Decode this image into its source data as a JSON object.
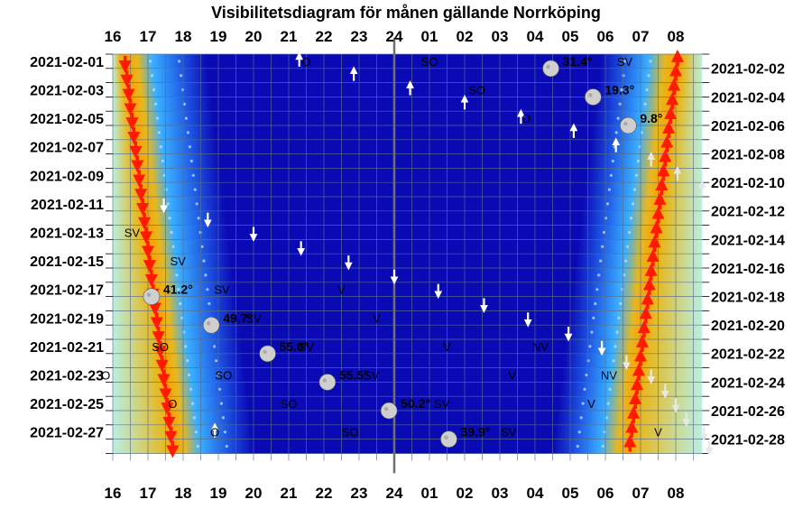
{
  "chart_data": {
    "type": "heatmap",
    "title": "Visibilitetsdiagram för månen gällande Norrköping",
    "x_ticks": [
      "16",
      "17",
      "18",
      "19",
      "20",
      "21",
      "22",
      "23",
      "24",
      "01",
      "02",
      "03",
      "04",
      "05",
      "06",
      "07",
      "08"
    ],
    "left_dates": [
      "2021-02-01",
      "2021-02-03",
      "2021-02-05",
      "2021-02-07",
      "2021-02-09",
      "2021-02-11",
      "2021-02-13",
      "2021-02-15",
      "2021-02-17",
      "2021-02-19",
      "2021-02-21",
      "2021-02-23",
      "2021-02-25",
      "2021-02-27"
    ],
    "right_dates": [
      "2021-02-02",
      "2021-02-04",
      "2021-02-06",
      "2021-02-08",
      "2021-02-10",
      "2021-02-12",
      "2021-02-14",
      "2021-02-16",
      "2021-02-18",
      "2021-02-20",
      "2021-02-22",
      "2021-02-24",
      "2021-02-26",
      "2021-02-28"
    ],
    "midnight_hour": 24,
    "sunset_hours": [
      16.35,
      16.4,
      16.45,
      16.5,
      16.55,
      16.6,
      16.65,
      16.7,
      16.75,
      16.8,
      16.85,
      16.9,
      16.95,
      17.0,
      17.05,
      17.1,
      17.15,
      17.2,
      17.25,
      17.3,
      17.35,
      17.4,
      17.45,
      17.5,
      17.55,
      17.6,
      17.65,
      17.7
    ],
    "sunrise_hours": [
      32.05,
      32.0,
      31.95,
      31.9,
      31.85,
      31.8,
      31.75,
      31.7,
      31.65,
      31.6,
      31.55,
      31.5,
      31.45,
      31.4,
      31.35,
      31.3,
      31.25,
      31.2,
      31.15,
      31.1,
      31.05,
      31.0,
      30.95,
      30.9,
      30.85,
      30.8,
      30.75,
      30.7
    ],
    "moonrises": [
      {
        "day": 1,
        "hour": 21.3
      },
      {
        "day": 2,
        "hour": 22.85
      },
      {
        "day": 3,
        "hour": 24.45
      },
      {
        "day": 4,
        "hour": 26.0
      },
      {
        "day": 5,
        "hour": 27.6
      },
      {
        "day": 6,
        "hour": 29.1
      },
      {
        "day": 7,
        "hour": 30.3
      },
      {
        "day": 8,
        "hour": 31.3
      },
      {
        "day": 9,
        "hour": 32.05
      },
      {
        "day": 10,
        "hour": 32.75
      },
      {
        "day": 27,
        "hour": 18.9
      }
    ],
    "moonsets": [
      {
        "day": 11,
        "hour": 17.45
      },
      {
        "day": 12,
        "hour": 18.7
      },
      {
        "day": 13,
        "hour": 20.0
      },
      {
        "day": 14,
        "hour": 21.35
      },
      {
        "day": 15,
        "hour": 22.7
      },
      {
        "day": 16,
        "hour": 24.0
      },
      {
        "day": 17,
        "hour": 25.25
      },
      {
        "day": 18,
        "hour": 26.55
      },
      {
        "day": 19,
        "hour": 27.8
      },
      {
        "day": 20,
        "hour": 28.95
      },
      {
        "day": 21,
        "hour": 29.9
      },
      {
        "day": 22,
        "hour": 30.6
      },
      {
        "day": 23,
        "hour": 31.3
      },
      {
        "day": 24,
        "hour": 31.7
      },
      {
        "day": 25,
        "hour": 32.0
      },
      {
        "day": 26,
        "hour": 32.3
      },
      {
        "day": 27,
        "hour": 32.8
      },
      {
        "day": 28,
        "hour": 32.95
      }
    ],
    "transits": [
      {
        "day": 1,
        "hour": 28.45,
        "altitude": "31.4°"
      },
      {
        "day": 3,
        "hour": 29.65,
        "altitude": "19.3°"
      },
      {
        "day": 5,
        "hour": 30.65,
        "altitude": "9.8°"
      },
      {
        "day": 17,
        "hour": 17.1,
        "altitude": "41.2°"
      },
      {
        "day": 19,
        "hour": 18.8,
        "altitude": "49.7°"
      },
      {
        "day": 21,
        "hour": 20.4,
        "altitude": "55.0°"
      },
      {
        "day": 23,
        "hour": 22.1,
        "altitude": "55.5°"
      },
      {
        "day": 25,
        "hour": 23.85,
        "altitude": "50.2°"
      },
      {
        "day": 27,
        "hour": 25.55,
        "altitude": "39.9°"
      }
    ],
    "direction_labels": [
      {
        "day": 1,
        "hour": 21.5,
        "text": "O"
      },
      {
        "day": 1,
        "hour": 25.0,
        "text": "SO"
      },
      {
        "day": 1,
        "hour": 30.55,
        "text": "SV"
      },
      {
        "day": 3,
        "hour": 26.35,
        "text": "SO"
      },
      {
        "day": 5,
        "hour": 27.75,
        "text": "O"
      },
      {
        "day": 13,
        "hour": 16.55,
        "text": "SV"
      },
      {
        "day": 15,
        "hour": 17.85,
        "text": "SV"
      },
      {
        "day": 17,
        "hour": 19.1,
        "text": "SV"
      },
      {
        "day": 17,
        "hour": 22.5,
        "text": "V"
      },
      {
        "day": 19,
        "hour": 20.0,
        "text": "SV"
      },
      {
        "day": 19,
        "hour": 23.5,
        "text": "V"
      },
      {
        "day": 21,
        "hour": 17.35,
        "text": "SO"
      },
      {
        "day": 21,
        "hour": 21.5,
        "text": "SV"
      },
      {
        "day": 21,
        "hour": 25.5,
        "text": "V"
      },
      {
        "day": 21,
        "hour": 28.15,
        "text": "NV"
      },
      {
        "day": 23,
        "hour": 15.8,
        "text": "O"
      },
      {
        "day": 23,
        "hour": 19.15,
        "text": "SO"
      },
      {
        "day": 23,
        "hour": 23.35,
        "text": "SV"
      },
      {
        "day": 23,
        "hour": 27.35,
        "text": "V"
      },
      {
        "day": 23,
        "hour": 30.1,
        "text": "NV"
      },
      {
        "day": 25,
        "hour": 17.7,
        "text": "O"
      },
      {
        "day": 25,
        "hour": 21.0,
        "text": "SO"
      },
      {
        "day": 25,
        "hour": 25.35,
        "text": "SV"
      },
      {
        "day": 25,
        "hour": 29.6,
        "text": "V"
      },
      {
        "day": 27,
        "hour": 18.9,
        "text": "O"
      },
      {
        "day": 27,
        "hour": 22.75,
        "text": "SO"
      },
      {
        "day": 27,
        "hour": 27.25,
        "text": "SV"
      },
      {
        "day": 27,
        "hour": 31.5,
        "text": "V"
      }
    ],
    "colors": {
      "day": "#b8f0e2",
      "twilight_gold": "#e6b820",
      "twilight_orange": "#ff9c00",
      "deep_blue": "#0a0ab4",
      "mid_blue": "#1f5ce6",
      "light_blue": "#3ab0ff",
      "grid": "#5a6e8c",
      "midnight_line": "#707070",
      "sun_arrow": "#ff1a00",
      "sun_arrow_edge": "#ffd800",
      "moon_arrow": "#ffffff",
      "moon": "#cfcfcf"
    }
  }
}
